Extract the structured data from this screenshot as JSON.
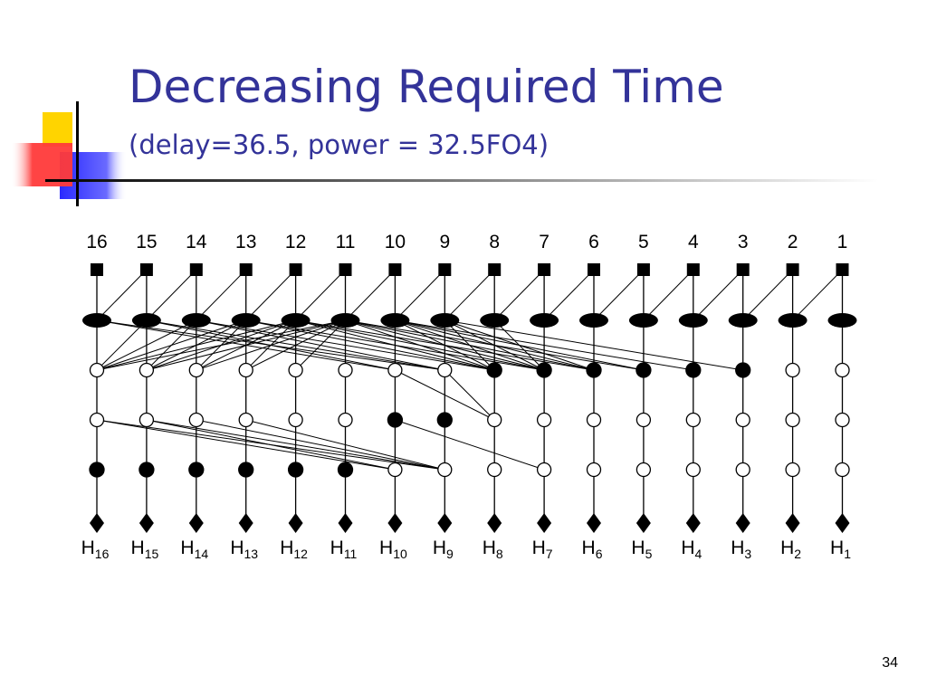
{
  "slide": {
    "title": "Decreasing Required Time",
    "subtitle": "(delay=36.5, power = 32.5FO4)",
    "page_number": "34"
  },
  "colors": {
    "title": "#333399",
    "deco_yellow": "#ffd400",
    "deco_red": "#ff3a3a",
    "deco_blue": "#2a2aff"
  },
  "diagram": {
    "input_labels": [
      "16",
      "15",
      "14",
      "13",
      "12",
      "11",
      "10",
      "9",
      "8",
      "7",
      "6",
      "5",
      "4",
      "3",
      "2",
      "1"
    ],
    "output_labels": [
      {
        "base": "H",
        "sub": "16"
      },
      {
        "base": "H",
        "sub": "15"
      },
      {
        "base": "H",
        "sub": "14"
      },
      {
        "base": "H",
        "sub": "13"
      },
      {
        "base": "H",
        "sub": "12"
      },
      {
        "base": "H",
        "sub": "11"
      },
      {
        "base": "H",
        "sub": "10"
      },
      {
        "base": "H",
        "sub": "9"
      },
      {
        "base": "H",
        "sub": "8"
      },
      {
        "base": "H",
        "sub": "7"
      },
      {
        "base": "H",
        "sub": "6"
      },
      {
        "base": "H",
        "sub": "5"
      },
      {
        "base": "H",
        "sub": "4"
      },
      {
        "base": "H",
        "sub": "3"
      },
      {
        "base": "H",
        "sub": "2"
      },
      {
        "base": "H",
        "sub": "1"
      }
    ],
    "node_rows": [
      {
        "name": "input-row",
        "shape": "square",
        "filled": [
          0,
          1,
          2,
          3,
          4,
          5,
          6,
          7,
          8,
          9,
          10,
          11,
          12,
          13,
          14,
          15
        ]
      },
      {
        "name": "ellipse-row",
        "shape": "ellipse",
        "filled": [
          0,
          1,
          2,
          3,
          4,
          5,
          6,
          7,
          8,
          9,
          10,
          11,
          12,
          13,
          14,
          15
        ]
      },
      {
        "name": "row-2",
        "shape": "circle",
        "filled": [
          8,
          9,
          10,
          11,
          12,
          13
        ]
      },
      {
        "name": "row-3",
        "shape": "circle",
        "filled": [
          6,
          7
        ]
      },
      {
        "name": "row-4",
        "shape": "circle",
        "filled": [
          0,
          1,
          2,
          3,
          4,
          5
        ]
      },
      {
        "name": "output-row",
        "shape": "diamond",
        "filled": [
          0,
          1,
          2,
          3,
          4,
          5,
          6,
          7,
          8,
          9,
          10,
          11,
          12,
          13,
          14,
          15
        ]
      }
    ],
    "edges": [
      [
        0,
        1,
        0,
        0
      ],
      [
        0,
        2,
        1,
        1
      ],
      [
        0,
        3,
        2,
        2
      ],
      [
        0,
        4,
        3,
        3
      ],
      [
        0,
        5,
        4,
        4
      ],
      [
        0,
        6,
        5,
        5
      ],
      [
        0,
        7,
        6,
        6
      ],
      [
        0,
        8,
        7,
        7
      ],
      [
        0,
        9,
        8,
        8
      ],
      [
        0,
        10,
        9,
        9
      ],
      [
        0,
        11,
        10,
        10
      ],
      [
        0,
        12,
        11,
        11
      ],
      [
        0,
        13,
        12,
        12
      ],
      [
        0,
        14,
        13,
        13
      ],
      [
        0,
        15,
        14,
        14
      ],
      [
        1,
        2,
        8,
        8
      ],
      [
        1,
        3,
        8,
        8
      ],
      [
        1,
        4,
        8,
        8
      ],
      [
        1,
        5,
        8,
        8
      ],
      [
        1,
        6,
        8,
        8
      ],
      [
        1,
        7,
        8,
        8
      ],
      [
        1,
        8,
        8,
        8
      ],
      [
        1,
        3,
        9,
        9
      ],
      [
        1,
        4,
        9,
        9
      ],
      [
        1,
        5,
        9,
        9
      ],
      [
        1,
        6,
        9,
        9
      ],
      [
        1,
        7,
        9,
        9
      ],
      [
        1,
        8,
        9,
        9
      ],
      [
        1,
        4,
        10,
        10
      ],
      [
        1,
        5,
        10,
        10
      ],
      [
        1,
        6,
        10,
        10
      ],
      [
        1,
        7,
        10,
        10
      ],
      [
        1,
        5,
        11,
        11
      ],
      [
        1,
        6,
        11,
        11
      ],
      [
        1,
        6,
        12,
        12
      ],
      [
        1,
        7,
        13,
        13
      ],
      [
        1,
        0,
        6,
        6
      ],
      [
        1,
        1,
        6,
        6
      ],
      [
        1,
        0,
        7,
        7
      ],
      [
        1,
        1,
        7,
        7
      ],
      [
        1,
        2,
        7,
        7
      ],
      [
        1,
        1,
        0,
        0
      ],
      [
        1,
        2,
        0,
        0
      ],
      [
        1,
        3,
        0,
        0
      ],
      [
        1,
        4,
        0,
        0
      ],
      [
        1,
        5,
        0,
        0
      ],
      [
        1,
        2,
        1,
        1
      ],
      [
        1,
        3,
        1,
        1
      ],
      [
        1,
        4,
        1,
        1
      ],
      [
        1,
        5,
        1,
        1
      ],
      [
        1,
        3,
        2,
        2
      ],
      [
        1,
        4,
        2,
        2
      ],
      [
        1,
        5,
        2,
        2
      ],
      [
        1,
        4,
        3,
        3
      ],
      [
        1,
        5,
        3,
        3
      ],
      [
        1,
        4,
        4,
        4
      ],
      [
        1,
        5,
        4,
        4
      ],
      [
        1,
        5,
        5,
        5
      ],
      [
        2,
        6,
        8,
        8
      ],
      [
        2,
        7,
        8,
        8
      ],
      [
        3,
        6,
        9,
        9
      ],
      [
        3,
        0,
        6,
        6
      ],
      [
        3,
        1,
        6,
        6
      ],
      [
        3,
        0,
        7,
        7
      ],
      [
        3,
        1,
        7,
        7
      ],
      [
        3,
        2,
        7,
        7
      ],
      [
        3,
        3,
        7,
        7
      ]
    ]
  }
}
